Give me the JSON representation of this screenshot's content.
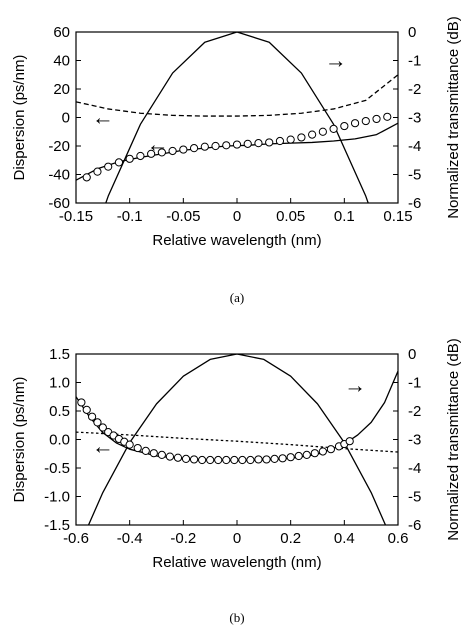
{
  "chart_data": [
    {
      "type": "line",
      "caption": "(a)",
      "xlabel": "Relative wavelength (nm)",
      "ylabel": "Dispersion (ps/nm)",
      "y2label": "Normalized transmittance (dB)",
      "xlim": [
        -0.15,
        0.15
      ],
      "ylim": [
        -60,
        60
      ],
      "y2lim": [
        -6,
        0
      ],
      "xticks": [
        "-0.15",
        "-0.1",
        "-0.05",
        "0",
        "0.05",
        "0.1",
        "0.15"
      ],
      "yticks": [
        "60",
        "40",
        "20",
        "0",
        "-20",
        "-40",
        "-60"
      ],
      "y2ticks": [
        "0",
        "-1",
        "-2",
        "-3",
        "-4",
        "-5",
        "-6"
      ],
      "grid": false,
      "series": [
        {
          "style": "solid",
          "axis": "right",
          "x": [
            -0.15,
            -0.12,
            -0.09,
            -0.06,
            -0.03,
            0,
            0.03,
            0.06,
            0.09,
            0.12,
            0.15
          ],
          "y": [
            -9.0,
            -5.76,
            -3.24,
            -1.44,
            -0.36,
            0,
            -0.36,
            -1.44,
            -3.24,
            -5.76,
            -9.0
          ]
        },
        {
          "style": "dashed",
          "axis": "left",
          "x": [
            -0.15,
            -0.12,
            -0.09,
            -0.06,
            -0.03,
            0,
            0.03,
            0.06,
            0.09,
            0.12,
            0.15
          ],
          "y": [
            11,
            6,
            3,
            1.5,
            1,
            1,
            1.5,
            3,
            6,
            12,
            30
          ]
        },
        {
          "style": "solid",
          "axis": "left",
          "x": [
            -0.15,
            -0.13,
            -0.11,
            -0.09,
            -0.07,
            -0.05,
            -0.03,
            -0.01,
            0.01,
            0.03,
            0.05,
            0.07,
            0.09,
            0.11,
            0.13,
            0.15
          ],
          "y": [
            -44,
            -36,
            -31,
            -28,
            -25.5,
            -23,
            -21.5,
            -20,
            -19.5,
            -18.5,
            -18,
            -17.5,
            -16.5,
            -15,
            -12,
            -4
          ]
        },
        {
          "style": "circles",
          "axis": "left",
          "x": [
            -0.14,
            -0.13,
            -0.12,
            -0.11,
            -0.1,
            -0.09,
            -0.08,
            -0.07,
            -0.06,
            -0.05,
            -0.04,
            -0.03,
            -0.02,
            -0.01,
            0.0,
            0.01,
            0.02,
            0.03,
            0.04,
            0.05,
            0.06,
            0.07,
            0.08,
            0.09,
            0.1,
            0.11,
            0.12,
            0.13,
            0.14
          ],
          "y": [
            -42,
            -38,
            -34.5,
            -31.5,
            -29,
            -27,
            -25.5,
            -24.5,
            -23.5,
            -22.5,
            -21.5,
            -20.5,
            -20,
            -19.5,
            -19,
            -18.5,
            -18,
            -17.5,
            -16.5,
            -15.5,
            -14,
            -12,
            -10,
            -8,
            -6,
            -4,
            -2.5,
            -1,
            0.5
          ]
        }
      ],
      "annotations": [
        {
          "text": "→",
          "x": 0.092,
          "y": 40
        },
        {
          "text": "←",
          "x": -0.125,
          "y": 0
        },
        {
          "text": "←",
          "x": -0.074,
          "y": -19
        }
      ]
    },
    {
      "type": "line",
      "caption": "(b)",
      "xlabel": "Relative wavelength (nm)",
      "ylabel": "Dispersion (ps/nm)",
      "y2label": "Normalized transmittance (dB)",
      "xlim": [
        -0.6,
        0.6
      ],
      "ylim": [
        -1.5,
        1.5
      ],
      "y2lim": [
        -6,
        0
      ],
      "xticks": [
        "-0.6",
        "-0.4",
        "-0.2",
        "0",
        "0.2",
        "0.4",
        "0.6"
      ],
      "yticks": [
        "1.5",
        "1.0",
        "0.5",
        "0.0",
        "-0.5",
        "-1.0",
        "-1.5"
      ],
      "y2ticks": [
        "0",
        "-1",
        "-2",
        "-3",
        "-4",
        "-5",
        "-6"
      ],
      "grid": false,
      "series": [
        {
          "style": "solid",
          "axis": "right",
          "x": [
            -0.6,
            -0.5,
            -0.4,
            -0.3,
            -0.2,
            -0.1,
            0,
            0.1,
            0.2,
            0.3,
            0.4,
            0.5,
            0.6
          ],
          "y": [
            -7.0,
            -4.86,
            -3.11,
            -1.75,
            -0.78,
            -0.19,
            0,
            -0.19,
            -0.78,
            -1.75,
            -3.11,
            -4.86,
            -7.0
          ]
        },
        {
          "style": "dotted",
          "axis": "left",
          "x": [
            -0.6,
            -0.4,
            -0.2,
            0,
            0.2,
            0.4,
            0.6
          ],
          "y": [
            0.13,
            0.08,
            0.02,
            -0.03,
            -0.09,
            -0.16,
            -0.22
          ]
        },
        {
          "style": "solid",
          "axis": "left",
          "x": [
            -0.6,
            -0.55,
            -0.5,
            -0.45,
            -0.4,
            -0.3,
            -0.2,
            -0.1,
            0,
            0.1,
            0.2,
            0.3,
            0.4,
            0.45,
            0.5,
            0.55,
            0.6
          ],
          "y": [
            0.75,
            0.4,
            0.12,
            -0.06,
            -0.17,
            -0.29,
            -0.34,
            -0.36,
            -0.37,
            -0.36,
            -0.33,
            -0.26,
            -0.08,
            0.08,
            0.3,
            0.65,
            1.2
          ]
        },
        {
          "style": "circles",
          "axis": "left",
          "x": [
            -0.58,
            -0.56,
            -0.54,
            -0.52,
            -0.5,
            -0.48,
            -0.46,
            -0.44,
            -0.42,
            -0.4,
            -0.37,
            -0.34,
            -0.31,
            -0.28,
            -0.25,
            -0.22,
            -0.19,
            -0.16,
            -0.13,
            -0.1,
            -0.07,
            -0.04,
            -0.01,
            0.02,
            0.05,
            0.08,
            0.11,
            0.14,
            0.17,
            0.2,
            0.23,
            0.26,
            0.29,
            0.32,
            0.35,
            0.38,
            0.4,
            0.42
          ],
          "y": [
            0.65,
            0.52,
            0.4,
            0.3,
            0.21,
            0.13,
            0.07,
            0.01,
            -0.04,
            -0.09,
            -0.15,
            -0.2,
            -0.24,
            -0.27,
            -0.3,
            -0.32,
            -0.34,
            -0.35,
            -0.36,
            -0.36,
            -0.36,
            -0.36,
            -0.36,
            -0.36,
            -0.36,
            -0.35,
            -0.35,
            -0.34,
            -0.33,
            -0.31,
            -0.29,
            -0.27,
            -0.24,
            -0.21,
            -0.17,
            -0.12,
            -0.08,
            -0.03
          ]
        }
      ],
      "annotations": [
        {
          "text": "→",
          "x": 0.44,
          "y": 0.95
        },
        {
          "text": "←",
          "x": -0.5,
          "y": -0.12
        }
      ]
    }
  ]
}
